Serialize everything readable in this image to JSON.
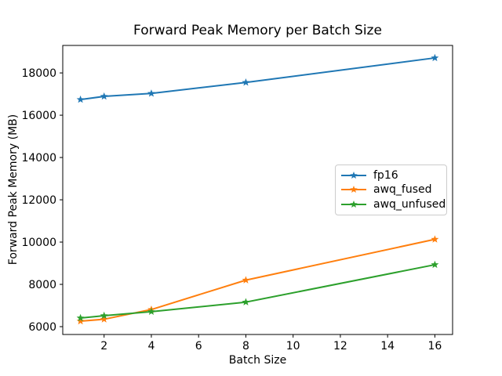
{
  "figure": {
    "background": "#ffffff"
  },
  "chart_data": {
    "type": "line",
    "title": "Forward Peak Memory per Batch Size",
    "xlabel": "Batch Size",
    "ylabel": "Forward Peak Memory (MB)",
    "x": [
      1,
      2,
      4,
      8,
      16
    ],
    "series": [
      {
        "name": "fp16",
        "color": "#1f77b4",
        "values": [
          16740,
          16890,
          17030,
          17550,
          18710
        ]
      },
      {
        "name": "awq_fused",
        "color": "#ff7f0e",
        "values": [
          6260,
          6350,
          6810,
          8200,
          10130
        ]
      },
      {
        "name": "awq_unfused",
        "color": "#2ca02c",
        "values": [
          6410,
          6520,
          6710,
          7160,
          8930
        ]
      }
    ],
    "marker": "star",
    "xlim": [
      0.25,
      16.75
    ],
    "ylim": [
      5630,
      19300
    ],
    "xticks": [
      2,
      4,
      6,
      8,
      10,
      12,
      14,
      16
    ],
    "yticks": [
      6000,
      8000,
      10000,
      12000,
      14000,
      16000,
      18000
    ],
    "grid": false,
    "legend_position": "center-right",
    "axis_color": "#000000",
    "text_color": "#000000",
    "legend_border_color": "#cccccc",
    "tick_font_px": 14
  }
}
